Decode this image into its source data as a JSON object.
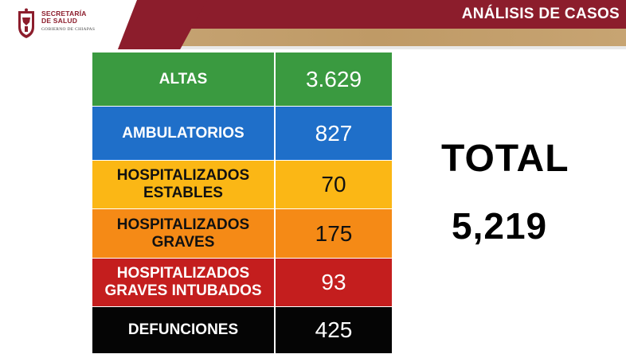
{
  "header": {
    "logo_line1": "SECRETARÍA",
    "logo_line2": "DE SALUD",
    "logo_line3": "GOBIERNO DE CHIAPAS",
    "title": "ANÁLISIS DE CASOS",
    "brand_color": "#8c1d2c",
    "accent_color": "#c4a06c"
  },
  "rows": [
    {
      "label": "ALTAS",
      "value": "3.629",
      "color": "#3a9a40"
    },
    {
      "label": "AMBULATORIOS",
      "value": "827",
      "color": "#1f6fc9"
    },
    {
      "label": "HOSPITALIZADOS ESTABLES",
      "value": "70",
      "color": "#fbb715"
    },
    {
      "label": "HOSPITALIZADOS GRAVES",
      "value": "175",
      "color": "#f58a16"
    },
    {
      "label": "HOSPITALIZADOS GRAVES INTUBADOS",
      "value": "93",
      "color": "#c41e1e"
    },
    {
      "label": "DEFUNCIONES",
      "value": "425",
      "color": "#050505"
    }
  ],
  "total": {
    "label": "TOTAL",
    "value": "5,219"
  },
  "icons": {
    "crest": "chiapas-coat-of-arms-icon"
  }
}
